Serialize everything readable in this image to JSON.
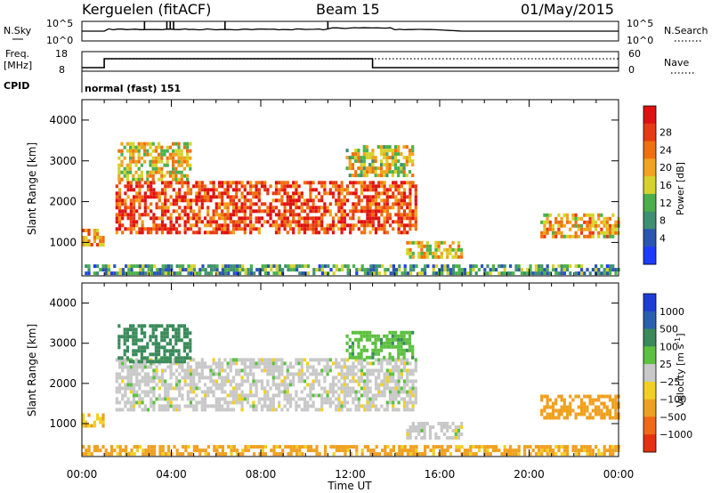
{
  "header": {
    "station": "Kerguelen (fitACF)",
    "beam": "Beam 15",
    "date": "01/May/2015"
  },
  "left_labels": {
    "nsky": "N.Sky",
    "freq_top": "Freq.",
    "freq_unit": "[MHz]",
    "cpid": "CPID"
  },
  "right_labels": {
    "nsearch": "N.Search",
    "nave": "Nave"
  },
  "nsky_ticks": [
    "10^5",
    "10^0"
  ],
  "nsearch_ticks": [
    "10^5",
    "10^0"
  ],
  "freq_ticks": [
    "18",
    "8"
  ],
  "nave_ticks": [
    "60",
    "0"
  ],
  "cpid_text": "normal (fast) 151",
  "colorbars": {
    "power": {
      "label": "Power [dB]",
      "ticks": [
        "4",
        "8",
        "12",
        "16",
        "20",
        "24",
        "28"
      ],
      "colors": [
        "#1e3cff",
        "#2a55b0",
        "#3f8f72",
        "#4bb04b",
        "#d6d22a",
        "#f2a21c",
        "#f07010",
        "#e83a12",
        "#e01010"
      ]
    },
    "velocity": {
      "label": "Velocity [m s",
      "label_sup": "-1",
      "label_end": "]",
      "ticks": [
        "1000",
        "500",
        "100",
        "25",
        "−25",
        "−100",
        "−500",
        "−1000"
      ],
      "colors": [
        "#1e3cd8",
        "#2a60b0",
        "#3a8a5a",
        "#5cc040",
        "#c8c8c8",
        "#f2d020",
        "#f0a020",
        "#f06818",
        "#e83010"
      ]
    }
  },
  "chart_data": {
    "type": "heatmap",
    "xlabel": "Time UT",
    "ylabel": "Slant Range [km]",
    "x_ticks": [
      "00:00",
      "04:00",
      "08:00",
      "12:00",
      "16:00",
      "20:00",
      "00:00"
    ],
    "y_ticks": [
      1000,
      2000,
      3000,
      4000
    ],
    "x_range_hours": [
      0,
      24
    ],
    "y_range_km": [
      180,
      4500
    ],
    "panels": [
      {
        "quantity": "Power",
        "unit": "dB",
        "regions": [
          {
            "t0": 0.0,
            "t1": 1.0,
            "r0": 900,
            "r1": 1250,
            "value": 22
          },
          {
            "t0": 1.5,
            "t1": 15.0,
            "r0": 1200,
            "r1": 2500,
            "value": 26
          },
          {
            "t0": 1.6,
            "t1": 4.8,
            "r0": 2500,
            "r1": 3400,
            "value": 18
          },
          {
            "t0": 11.8,
            "t1": 14.8,
            "r0": 2600,
            "r1": 3300,
            "value": 16
          },
          {
            "t0": 14.5,
            "t1": 17.0,
            "r0": 600,
            "r1": 1000,
            "value": 18
          },
          {
            "t0": 20.5,
            "t1": 24.0,
            "r0": 1100,
            "r1": 1700,
            "value": 20
          },
          {
            "t0": 0.0,
            "t1": 24.0,
            "r0": 200,
            "r1": 450,
            "value": 10
          }
        ]
      },
      {
        "quantity": "Velocity",
        "unit": "m s-1",
        "regions": [
          {
            "t0": 0.0,
            "t1": 1.0,
            "r0": 900,
            "r1": 1250,
            "value": -100
          },
          {
            "t0": 1.5,
            "t1": 15.0,
            "r0": 1300,
            "r1": 2600,
            "value": 0
          },
          {
            "t0": 1.6,
            "t1": 4.8,
            "r0": 2500,
            "r1": 3400,
            "value": 150
          },
          {
            "t0": 11.8,
            "t1": 14.8,
            "r0": 2600,
            "r1": 3300,
            "value": 80
          },
          {
            "t0": 14.5,
            "t1": 17.0,
            "r0": 600,
            "r1": 1000,
            "value": 0
          },
          {
            "t0": 20.5,
            "t1": 24.0,
            "r0": 1100,
            "r1": 1700,
            "value": -400
          },
          {
            "t0": 0.0,
            "t1": 24.0,
            "r0": 200,
            "r1": 450,
            "value": -120
          }
        ]
      }
    ]
  }
}
